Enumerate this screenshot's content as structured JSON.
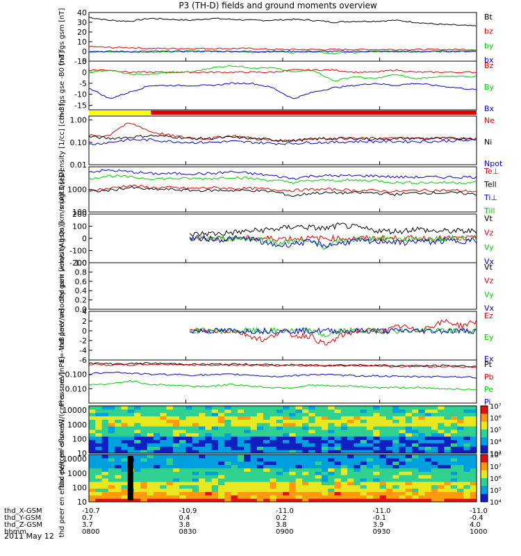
{
  "title": "P3 (TH-D) fields and ground moments overview",
  "date": "2011 May 12",
  "ephemeris": {
    "labels": [
      "thd_X-GSM",
      "thd_Y-GSM",
      "thd_Z-GSM",
      "hhmm"
    ],
    "columns": [
      [
        "-10.7",
        "0.7",
        "3.7",
        "0800"
      ],
      [
        "-10.9",
        "0.4",
        "3.8",
        "0830"
      ],
      [
        "-11.0",
        "0.2",
        "3.8",
        "0900"
      ],
      [
        "-11.0",
        "-0.1",
        "3.9",
        "0930"
      ],
      [
        "-11.0",
        "-0.4",
        "4.0",
        "1000"
      ]
    ]
  },
  "colors": {
    "black": "#000000",
    "red": "#e00000",
    "green": "#00cc00",
    "blue": "#0000cc",
    "yellow": "#ffff00"
  },
  "chart_data": [
    {
      "type": "line",
      "id": "gsm",
      "ylabel": "thd fgs gsm [nT]",
      "ylim": [
        -10,
        40
      ],
      "yticks": [
        "-10",
        "0",
        "10",
        "20",
        "30",
        "40"
      ],
      "series": [
        {
          "name": "Bt",
          "color": "black",
          "values": [
            35,
            32,
            31,
            34,
            33,
            32,
            34,
            33,
            32,
            32,
            33,
            32,
            30,
            31,
            31,
            32,
            30,
            28,
            27,
            26
          ]
        },
        {
          "name": "bz",
          "color": "red",
          "values": [
            5,
            4,
            4,
            3,
            3,
            3,
            3,
            3,
            3,
            2,
            2,
            2,
            2,
            2,
            2,
            2,
            2,
            2,
            2,
            2
          ]
        },
        {
          "name": "by",
          "color": "green",
          "values": [
            0,
            0,
            -1,
            -1,
            0,
            1,
            0,
            0,
            -1,
            0,
            -1,
            0,
            -2,
            -1,
            0,
            0,
            -1,
            0,
            1,
            1
          ]
        },
        {
          "name": "bx",
          "color": "blue",
          "values": [
            0,
            0,
            0,
            0,
            0,
            0,
            0,
            0,
            0,
            0,
            0,
            0,
            0,
            0,
            0,
            0,
            0,
            0,
            0,
            0
          ]
        }
      ]
    },
    {
      "type": "line",
      "id": "gse",
      "ylabel": "thd fgs gse -B0 [nT]",
      "ylim": [
        -17,
        5
      ],
      "yticks": [
        "-15",
        "-10",
        "-5",
        "0",
        "5"
      ],
      "series": [
        {
          "name": "Bz",
          "color": "red",
          "values": [
            1,
            1,
            0,
            0,
            0,
            0,
            0,
            0,
            0,
            0,
            1,
            1,
            1,
            0,
            0,
            1,
            0,
            0,
            0,
            0
          ]
        },
        {
          "name": "By",
          "color": "green",
          "values": [
            0,
            1,
            -1,
            -1,
            0,
            0,
            2,
            3,
            2,
            2,
            0,
            1,
            -4,
            -2,
            -3,
            -1,
            -3,
            -2,
            -2,
            -2
          ]
        },
        {
          "name": "Bx",
          "color": "blue",
          "values": [
            -7,
            -12,
            -9,
            -6,
            -6,
            -6,
            -6,
            -5,
            -5,
            -7,
            -12,
            -9,
            -7,
            -6,
            -5,
            -6,
            -5,
            -6,
            -7,
            -8
          ]
        }
      ]
    },
    {
      "type": "bar",
      "id": "region",
      "segments": [
        {
          "x": [
            0,
            0.16
          ],
          "color": "yellow"
        },
        {
          "x": [
            0.16,
            1
          ],
          "color": "red"
        }
      ]
    },
    {
      "type": "line",
      "id": "density",
      "scale": "log",
      "ylabel": "Density [1/cc] [cm-3]",
      "ylim": [
        0.01,
        1.5
      ],
      "yticks": [
        "0.01",
        "0.10",
        "1.00"
      ],
      "series": [
        {
          "name": "Ne",
          "color": "red",
          "values": [
            0.2,
            0.2,
            0.7,
            0.3,
            0.2,
            0.15,
            0.15,
            0.2,
            0.15,
            0.12,
            0.12,
            0.15,
            0.15,
            0.15,
            0.15,
            0.15,
            0.15,
            0.15,
            0.15,
            0.15
          ]
        },
        {
          "name": "Ni",
          "color": "black",
          "values": [
            0.18,
            0.15,
            0.17,
            0.2,
            0.18,
            0.15,
            0.15,
            0.17,
            0.15,
            0.13,
            0.12,
            0.14,
            0.15,
            0.15,
            0.14,
            0.15,
            0.15,
            0.15,
            0.15,
            0.15
          ]
        },
        {
          "name": "Npot",
          "color": "blue",
          "values": [
            0.08,
            0.1,
            0.13,
            0.13,
            0.11,
            0.1,
            0.1,
            0.11,
            0.1,
            0.09,
            0.09,
            0.1,
            0.1,
            0.11,
            0.11,
            0.11,
            0.11,
            0.11,
            0.12,
            0.12
          ]
        }
      ]
    },
    {
      "type": "line",
      "id": "temp",
      "scale": "log",
      "ylabel": "magt3 [eV]",
      "ylim": [
        100,
        10000
      ],
      "yticks": [
        "100",
        "1000"
      ],
      "series": [
        {
          "name": "Te⊥",
          "color": "red",
          "values": [
            900,
            1100,
            1500,
            1200,
            1200,
            1100,
            1200,
            1100,
            1100,
            1000,
            900,
            1000,
            1000,
            900,
            900,
            800,
            900,
            900,
            900,
            800
          ]
        },
        {
          "name": "Tell",
          "color": "black",
          "values": [
            800,
            900,
            1200,
            1000,
            1000,
            900,
            900,
            900,
            900,
            800,
            500,
            700,
            700,
            700,
            700,
            600,
            700,
            700,
            700,
            600
          ]
        },
        {
          "name": "Ti⊥",
          "color": "blue",
          "values": [
            6000,
            7000,
            6000,
            5000,
            5000,
            5000,
            5000,
            6000,
            5000,
            4000,
            3000,
            4000,
            4000,
            4000,
            4000,
            3500,
            3500,
            3500,
            3500,
            3500
          ]
        },
        {
          "name": "Till",
          "color": "green",
          "values": [
            3000,
            4000,
            3500,
            3000,
            3000,
            3000,
            3000,
            3500,
            3000,
            2500,
            2000,
            2500,
            2500,
            2500,
            2500,
            2000,
            2000,
            2000,
            2000,
            2000
          ]
        }
      ]
    },
    {
      "type": "line",
      "id": "ivel",
      "ylabel": "thd peir velocity gsm [km/s (All Qs)]",
      "ylim": [
        -200,
        200
      ],
      "yticks": [
        "-200",
        "-100",
        "0",
        "100",
        "200"
      ],
      "start": 0.26,
      "series": [
        {
          "name": "Vt",
          "color": "black",
          "values": [
            30,
            40,
            40,
            50,
            60,
            70,
            80,
            100,
            90,
            80,
            110,
            90,
            70,
            60,
            60,
            80,
            60,
            60,
            60,
            60
          ]
        },
        {
          "name": "Vz",
          "color": "red",
          "values": [
            0,
            0,
            0,
            0,
            0,
            0,
            0,
            0,
            0,
            0,
            0,
            0,
            0,
            0,
            0,
            0,
            0,
            0,
            0,
            0
          ]
        },
        {
          "name": "Vy",
          "color": "green",
          "values": [
            0,
            0,
            0,
            0,
            0,
            -10,
            -40,
            -20,
            -30,
            -70,
            -20,
            -10,
            0,
            0,
            -10,
            0,
            -10,
            0,
            0,
            0
          ]
        },
        {
          "name": "Vx",
          "color": "blue",
          "values": [
            0,
            0,
            -10,
            0,
            0,
            -40,
            -60,
            -40,
            -30,
            -60,
            -40,
            -20,
            -30,
            -20,
            -40,
            -20,
            -30,
            -20,
            -20,
            -20
          ]
        }
      ]
    },
    {
      "type": "line",
      "id": "evel",
      "ylabel": "thd peer velocity gsm [km/s (All Qs)]",
      "ylim": [
        0,
        1
      ],
      "yticks": [
        "0.0",
        "0.2",
        "0.4",
        "0.6",
        "0.8",
        "1.0"
      ],
      "series": [
        {
          "name": "Vt",
          "color": "black",
          "values": []
        },
        {
          "name": "Vz",
          "color": "red",
          "values": []
        },
        {
          "name": "Vy",
          "color": "green",
          "values": []
        },
        {
          "name": "Vx",
          "color": "blue",
          "values": []
        }
      ]
    },
    {
      "type": "line",
      "id": "efield",
      "ylabel": "E=-VxB [mV/m]",
      "ylim": [
        -6,
        4
      ],
      "yticks": [
        "-6",
        "-4",
        "-2",
        "0",
        "2",
        "4"
      ],
      "start": 0.26,
      "series": [
        {
          "name": "Ez",
          "color": "red",
          "values": [
            0,
            0,
            0,
            0,
            -1,
            -2,
            0,
            -1,
            -1,
            -3,
            -1,
            0,
            0,
            0,
            1,
            0,
            1,
            2,
            1,
            2
          ]
        },
        {
          "name": "Ey",
          "color": "green",
          "values": [
            0,
            0,
            0,
            0,
            0,
            0,
            0,
            0,
            0,
            -1,
            0,
            0,
            0,
            0,
            0,
            0,
            0,
            0,
            0,
            0
          ]
        },
        {
          "name": "Ex",
          "color": "blue",
          "values": [
            0,
            0,
            0,
            0,
            0,
            0,
            0,
            0,
            0,
            0,
            0,
            0,
            0,
            0,
            0,
            0,
            0,
            0,
            0,
            0
          ]
        }
      ]
    },
    {
      "type": "line",
      "id": "pressure",
      "scale": "log",
      "ylabel": "Pressure [nPa]",
      "ylim": [
        0.001,
        1
      ],
      "yticks": [
        "0.010",
        "0.100"
      ],
      "series": [
        {
          "name": "Pt",
          "color": "black",
          "values": [
            0.6,
            0.55,
            0.55,
            0.6,
            0.55,
            0.5,
            0.5,
            0.5,
            0.5,
            0.45,
            0.45,
            0.45,
            0.45,
            0.45,
            0.45,
            0.4,
            0.4,
            0.4,
            0.4,
            0.35
          ]
        },
        {
          "name": "Pb",
          "color": "red",
          "values": [
            0.5,
            0.45,
            0.45,
            0.5,
            0.5,
            0.45,
            0.45,
            0.45,
            0.45,
            0.4,
            0.4,
            0.4,
            0.4,
            0.4,
            0.4,
            0.35,
            0.35,
            0.35,
            0.35,
            0.3
          ]
        },
        {
          "name": "Pe",
          "color": "green",
          "values": [
            0.02,
            0.02,
            0.035,
            0.02,
            0.018,
            0.015,
            0.015,
            0.02,
            0.015,
            0.012,
            0.012,
            0.018,
            0.015,
            0.015,
            0.012,
            0.012,
            0.012,
            0.01,
            0.01,
            0.008
          ]
        },
        {
          "name": "Pi",
          "color": "blue",
          "values": [
            0.1,
            0.15,
            0.12,
            0.1,
            0.1,
            0.09,
            0.09,
            0.1,
            0.09,
            0.07,
            0.08,
            0.1,
            0.09,
            0.08,
            0.08,
            0.07,
            0.07,
            0.07,
            0.07,
            0.06
          ]
        }
      ]
    },
    {
      "type": "heatmap",
      "id": "ispec",
      "ylabel": "thd peir en eflux eV/(cm²-s-sr-eV)",
      "yticks": [
        "10",
        "100",
        "1000",
        "10000"
      ],
      "colorbar": [
        "10³",
        "10⁴",
        "10⁵",
        "10⁶",
        "10⁷"
      ]
    },
    {
      "type": "heatmap",
      "id": "espec",
      "ylabel": "thd peer en eflux eV/(cm²-s-sr-eV)",
      "yticks": [
        "10",
        "100",
        "1000",
        "10000"
      ],
      "colorbar": [
        "10⁴",
        "10⁵",
        "10⁶",
        "10⁷",
        "10⁸"
      ]
    }
  ]
}
